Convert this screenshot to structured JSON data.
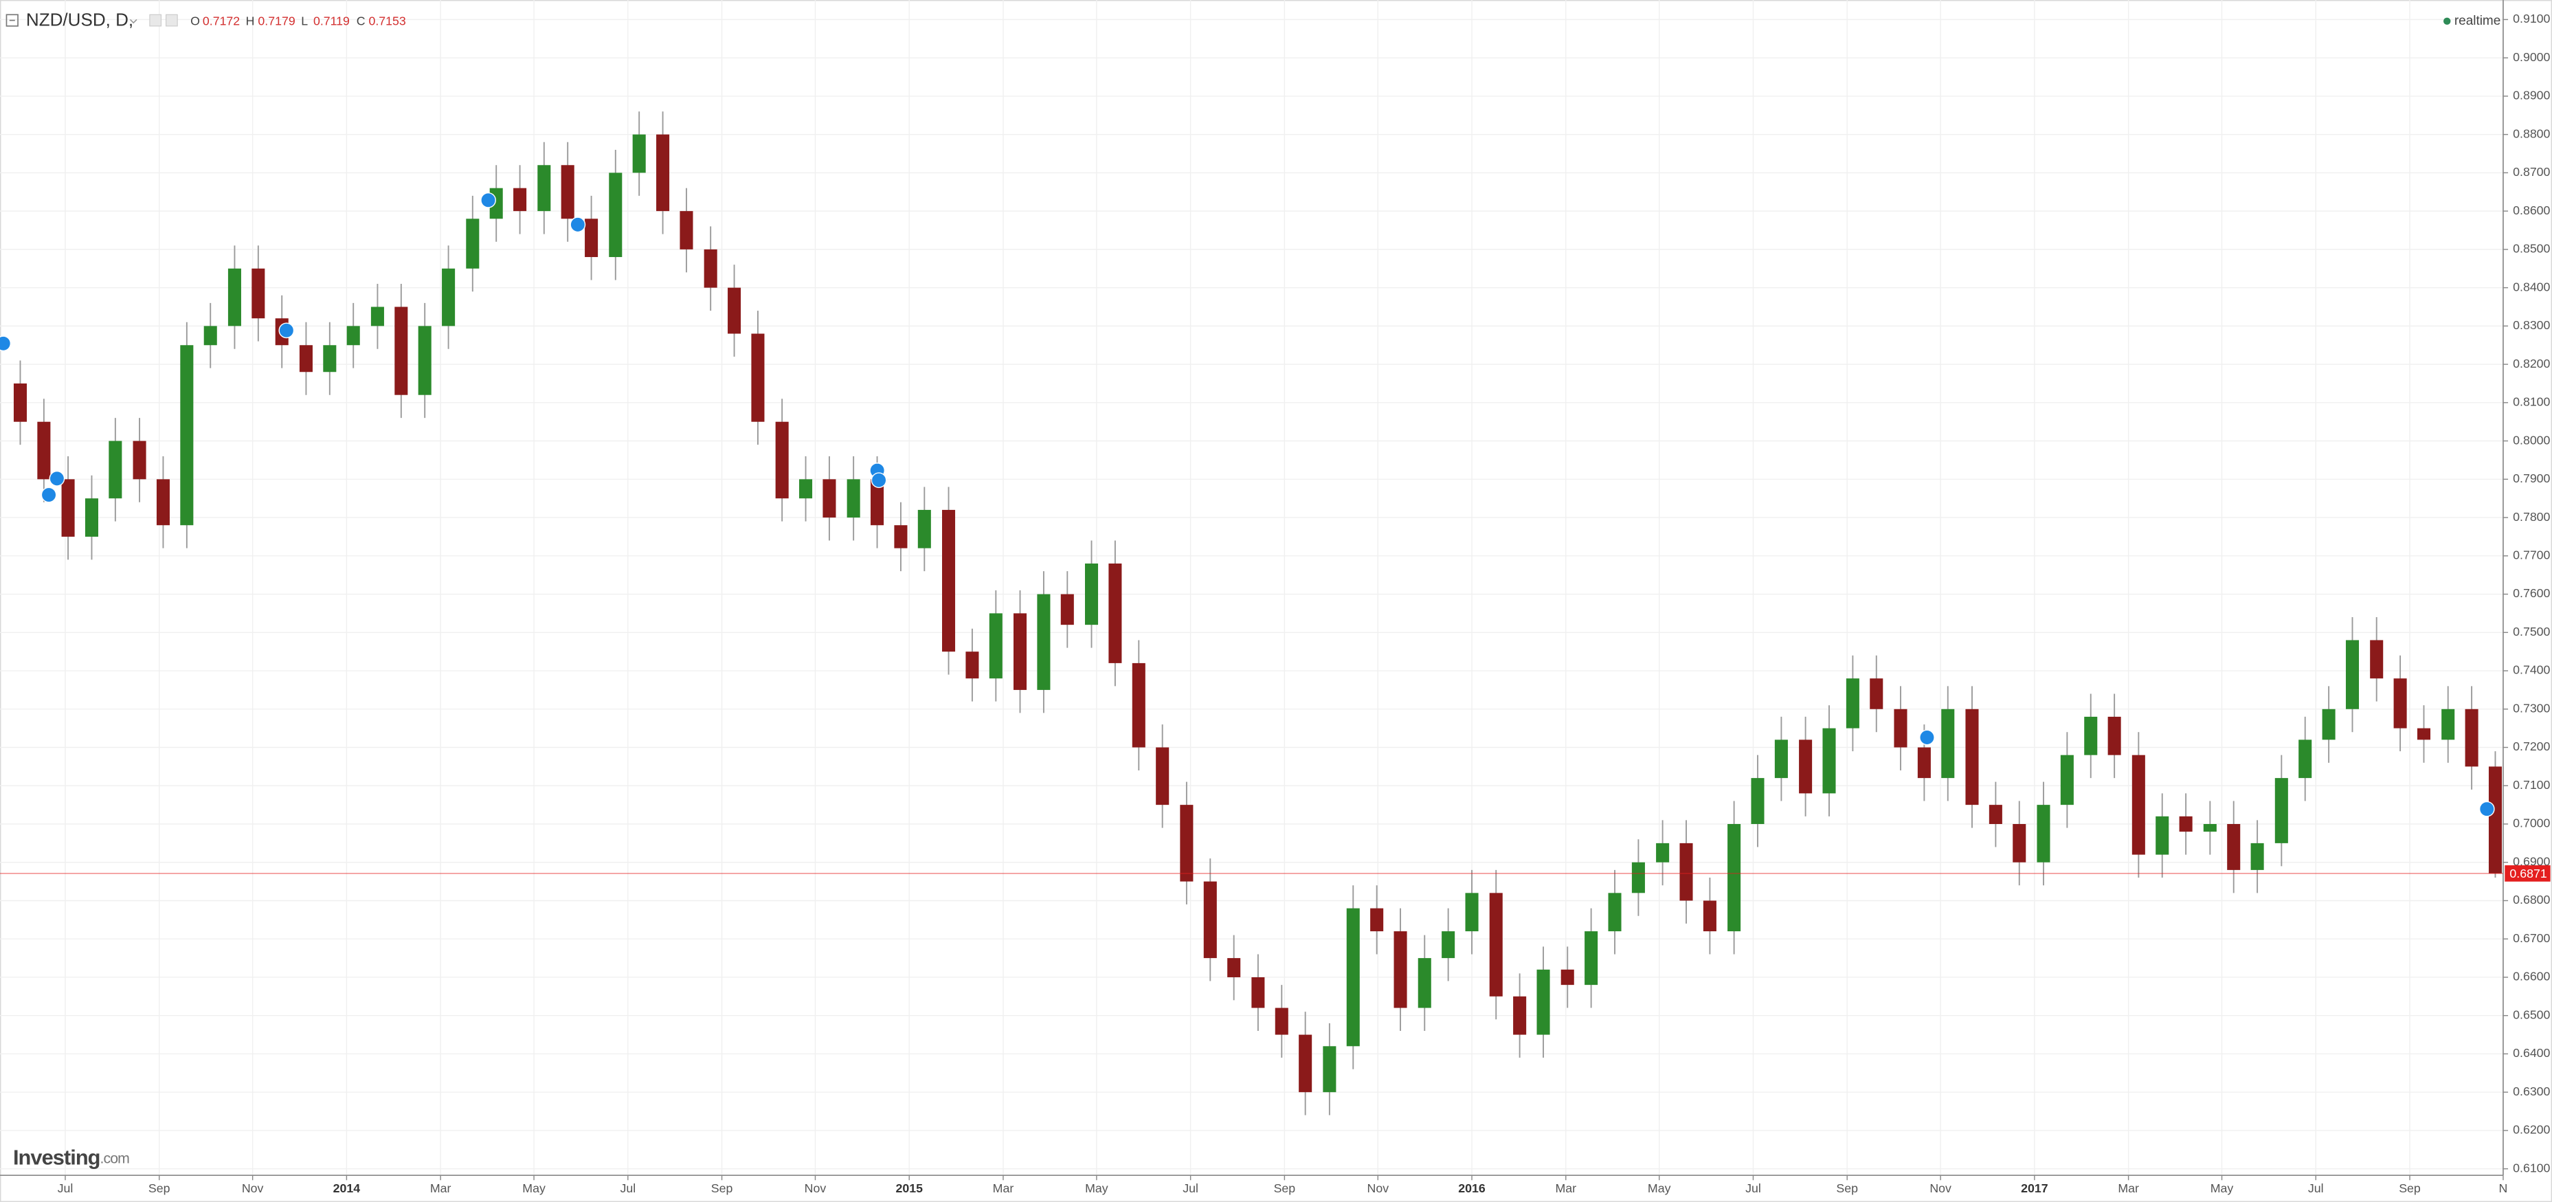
{
  "chart_data": {
    "type": "candlestick",
    "symbol": "NZD/USD, D,",
    "quote": [
      {
        "label": "O",
        "value": 0.7172
      },
      {
        "label": "H",
        "value": 0.7179
      },
      {
        "label": "L",
        "value": 0.7119
      },
      {
        "label": "C",
        "value": 0.7153
      }
    ],
    "status": "realtime",
    "brand": "Investing",
    "brand_suffix": ".com",
    "last_price": 0.6871,
    "last_price_color": "#e41e1e",
    "up_color": "#2b8a2b",
    "down_color": "#8b1a1a",
    "wick_color": "#9a9a9a",
    "grid": true,
    "xlim": [
      2013.384,
      2017.833
    ],
    "ylim": [
      0.6083,
      0.9151
    ],
    "xticks": [
      {
        "value": 2013.5,
        "label": "Jul"
      },
      {
        "value": 2013.667,
        "label": "Sep"
      },
      {
        "value": 2013.833,
        "label": "Nov"
      },
      2014,
      {
        "value": 2014.167,
        "label": "Mar"
      },
      {
        "value": 2014.333,
        "label": "May"
      },
      {
        "value": 2014.5,
        "label": "Jul"
      },
      {
        "value": 2014.667,
        "label": "Sep"
      },
      {
        "value": 2014.833,
        "label": "Nov"
      },
      2015,
      {
        "value": 2015.167,
        "label": "Mar"
      },
      {
        "value": 2015.333,
        "label": "May"
      },
      {
        "value": 2015.5,
        "label": "Jul"
      },
      {
        "value": 2015.667,
        "label": "Sep"
      },
      {
        "value": 2015.833,
        "label": "Nov"
      },
      2016,
      {
        "value": 2016.167,
        "label": "Mar"
      },
      {
        "value": 2016.333,
        "label": "May"
      },
      {
        "value": 2016.5,
        "label": "Jul"
      },
      {
        "value": 2016.667,
        "label": "Sep"
      },
      {
        "value": 2016.833,
        "label": "Nov"
      },
      2017,
      {
        "value": 2017.167,
        "label": "Mar"
      },
      {
        "value": 2017.333,
        "label": "May"
      },
      {
        "value": 2017.5,
        "label": "Jul"
      },
      {
        "value": 2017.667,
        "label": "Sep"
      },
      {
        "value": 2017.833,
        "label": "N"
      }
    ],
    "yticks": [
      {
        "value": 0.61,
        "label": "0.6100"
      },
      {
        "value": 0.62,
        "label": "0.6200"
      },
      {
        "value": 0.63,
        "label": "0.6300"
      },
      {
        "value": 0.64,
        "label": "0.6400"
      },
      {
        "value": 0.65,
        "label": "0.6500"
      },
      {
        "value": 0.66,
        "label": "0.6600"
      },
      {
        "value": 0.67,
        "label": "0.6700"
      },
      {
        "value": 0.68,
        "label": "0.6800"
      },
      {
        "value": 0.69,
        "label": "0.6900"
      },
      {
        "value": 0.7,
        "label": "0.7000"
      },
      {
        "value": 0.71,
        "label": "0.7100"
      },
      {
        "value": 0.72,
        "label": "0.7200"
      },
      {
        "value": 0.73,
        "label": "0.7300"
      },
      {
        "value": 0.74,
        "label": "0.7400"
      },
      {
        "value": 0.75,
        "label": "0.7500"
      },
      {
        "value": 0.76,
        "label": "0.7600"
      },
      {
        "value": 0.77,
        "label": "0.7700"
      },
      {
        "value": 0.78,
        "label": "0.7800"
      },
      {
        "value": 0.79,
        "label": "0.7900"
      },
      {
        "value": 0.8,
        "label": "0.8000"
      },
      {
        "value": 0.81,
        "label": "0.8100"
      },
      {
        "value": 0.82,
        "label": "0.8200"
      },
      {
        "value": 0.83,
        "label": "0.8300"
      },
      {
        "value": 0.84,
        "label": "0.8400"
      },
      {
        "value": 0.85,
        "label": "0.8500"
      },
      {
        "value": 0.86,
        "label": "0.8600"
      },
      {
        "value": 0.87,
        "label": "0.8700"
      },
      {
        "value": 0.88,
        "label": "0.8800"
      },
      {
        "value": 0.89,
        "label": "0.8900"
      },
      {
        "value": 0.9,
        "label": "0.9000"
      },
      {
        "value": 0.91,
        "label": "0.9100"
      }
    ],
    "x": [
      2013.42,
      2013.462,
      2013.505,
      2013.547,
      2013.589,
      2013.632,
      2013.674,
      2013.716,
      2013.758,
      2013.801,
      2013.843,
      2013.885,
      2013.928,
      2013.97,
      2014.012,
      2014.055,
      2014.097,
      2014.139,
      2014.181,
      2014.224,
      2014.266,
      2014.308,
      2014.351,
      2014.393,
      2014.435,
      2014.478,
      2014.52,
      2014.562,
      2014.604,
      2014.647,
      2014.689,
      2014.731,
      2014.774,
      2014.816,
      2014.858,
      2014.901,
      2014.943,
      2014.985,
      2015.027,
      2015.07,
      2015.112,
      2015.154,
      2015.197,
      2015.239,
      2015.281,
      2015.324,
      2015.366,
      2015.408,
      2015.45,
      2015.493,
      2015.535,
      2015.577,
      2015.62,
      2015.662,
      2015.704,
      2015.747,
      2015.789,
      2015.831,
      2015.873,
      2015.916,
      2015.958,
      2016.0,
      2016.043,
      2016.085,
      2016.127,
      2016.17,
      2016.212,
      2016.254,
      2016.296,
      2016.339,
      2016.381,
      2016.423,
      2016.466,
      2016.508,
      2016.55,
      2016.593,
      2016.635,
      2016.677,
      2016.719,
      2016.762,
      2016.804,
      2016.846,
      2016.889,
      2016.931,
      2016.973,
      2017.016,
      2017.058,
      2017.1,
      2017.142,
      2017.185,
      2017.227,
      2017.269,
      2017.312,
      2017.354,
      2017.396,
      2017.439,
      2017.481,
      2017.523,
      2017.565,
      2017.608,
      2017.65,
      2017.692,
      2017.735,
      2017.777,
      2017.819
    ],
    "open": [
      0.815,
      0.805,
      0.79,
      0.775,
      0.785,
      0.8,
      0.79,
      0.778,
      0.825,
      0.83,
      0.845,
      0.832,
      0.825,
      0.818,
      0.825,
      0.83,
      0.835,
      0.812,
      0.83,
      0.845,
      0.858,
      0.866,
      0.86,
      0.872,
      0.858,
      0.848,
      0.87,
      0.88,
      0.86,
      0.85,
      0.84,
      0.828,
      0.805,
      0.785,
      0.79,
      0.78,
      0.79,
      0.778,
      0.772,
      0.782,
      0.745,
      0.738,
      0.755,
      0.735,
      0.76,
      0.752,
      0.768,
      0.742,
      0.72,
      0.705,
      0.685,
      0.665,
      0.66,
      0.652,
      0.645,
      0.63,
      0.642,
      0.678,
      0.672,
      0.652,
      0.665,
      0.672,
      0.682,
      0.655,
      0.645,
      0.662,
      0.658,
      0.672,
      0.682,
      0.69,
      0.695,
      0.68,
      0.672,
      0.7,
      0.712,
      0.722,
      0.708,
      0.725,
      0.738,
      0.73,
      0.72,
      0.712,
      0.73,
      0.705,
      0.7,
      0.69,
      0.705,
      0.718,
      0.728,
      0.718,
      0.692,
      0.702,
      0.698,
      0.7,
      0.688,
      0.695,
      0.712,
      0.722,
      0.73,
      0.748,
      0.738,
      0.725,
      0.722,
      0.73,
      0.715
    ],
    "high": [
      0.821,
      0.811,
      0.796,
      0.791,
      0.806,
      0.806,
      0.796,
      0.831,
      0.836,
      0.851,
      0.851,
      0.838,
      0.831,
      0.831,
      0.836,
      0.841,
      0.841,
      0.836,
      0.851,
      0.864,
      0.872,
      0.872,
      0.878,
      0.878,
      0.864,
      0.876,
      0.886,
      0.886,
      0.866,
      0.856,
      0.846,
      0.834,
      0.811,
      0.796,
      0.796,
      0.796,
      0.796,
      0.784,
      0.788,
      0.788,
      0.751,
      0.761,
      0.761,
      0.766,
      0.766,
      0.774,
      0.774,
      0.748,
      0.726,
      0.711,
      0.691,
      0.671,
      0.666,
      0.658,
      0.651,
      0.648,
      0.684,
      0.684,
      0.678,
      0.671,
      0.678,
      0.688,
      0.688,
      0.661,
      0.668,
      0.668,
      0.678,
      0.688,
      0.696,
      0.701,
      0.701,
      0.686,
      0.706,
      0.718,
      0.728,
      0.728,
      0.731,
      0.744,
      0.744,
      0.736,
      0.726,
      0.736,
      0.736,
      0.711,
      0.706,
      0.711,
      0.724,
      0.734,
      0.734,
      0.724,
      0.708,
      0.708,
      0.706,
      0.706,
      0.701,
      0.718,
      0.728,
      0.736,
      0.754,
      0.754,
      0.744,
      0.731,
      0.736,
      0.736,
      0.719
    ],
    "low": [
      0.799,
      0.784,
      0.769,
      0.769,
      0.779,
      0.784,
      0.772,
      0.772,
      0.819,
      0.824,
      0.826,
      0.819,
      0.812,
      0.812,
      0.819,
      0.824,
      0.806,
      0.806,
      0.824,
      0.839,
      0.852,
      0.854,
      0.854,
      0.852,
      0.842,
      0.842,
      0.864,
      0.854,
      0.844,
      0.834,
      0.822,
      0.799,
      0.779,
      0.779,
      0.774,
      0.774,
      0.772,
      0.766,
      0.766,
      0.739,
      0.732,
      0.732,
      0.729,
      0.729,
      0.746,
      0.746,
      0.736,
      0.714,
      0.699,
      0.679,
      0.659,
      0.654,
      0.646,
      0.639,
      0.624,
      0.624,
      0.636,
      0.666,
      0.646,
      0.646,
      0.659,
      0.666,
      0.649,
      0.639,
      0.639,
      0.652,
      0.652,
      0.666,
      0.676,
      0.684,
      0.674,
      0.666,
      0.666,
      0.694,
      0.706,
      0.702,
      0.702,
      0.719,
      0.724,
      0.714,
      0.706,
      0.706,
      0.699,
      0.694,
      0.684,
      0.684,
      0.699,
      0.712,
      0.712,
      0.686,
      0.686,
      0.692,
      0.692,
      0.682,
      0.682,
      0.689,
      0.706,
      0.716,
      0.724,
      0.732,
      0.719,
      0.716,
      0.716,
      0.709,
      0.686
    ],
    "close": [
      0.805,
      0.79,
      0.775,
      0.785,
      0.8,
      0.79,
      0.778,
      0.825,
      0.83,
      0.845,
      0.832,
      0.825,
      0.818,
      0.825,
      0.83,
      0.835,
      0.812,
      0.83,
      0.845,
      0.858,
      0.866,
      0.86,
      0.872,
      0.858,
      0.848,
      0.87,
      0.88,
      0.86,
      0.85,
      0.84,
      0.828,
      0.805,
      0.785,
      0.79,
      0.78,
      0.79,
      0.778,
      0.772,
      0.782,
      0.745,
      0.738,
      0.755,
      0.735,
      0.76,
      0.752,
      0.768,
      0.742,
      0.72,
      0.705,
      0.685,
      0.665,
      0.66,
      0.652,
      0.645,
      0.63,
      0.642,
      0.678,
      0.672,
      0.652,
      0.665,
      0.672,
      0.682,
      0.655,
      0.645,
      0.662,
      0.658,
      0.672,
      0.682,
      0.69,
      0.695,
      0.68,
      0.672,
      0.7,
      0.712,
      0.722,
      0.708,
      0.725,
      0.738,
      0.73,
      0.72,
      0.712,
      0.73,
      0.705,
      0.7,
      0.69,
      0.705,
      0.718,
      0.728,
      0.718,
      0.692,
      0.702,
      0.698,
      0.7,
      0.688,
      0.695,
      0.712,
      0.722,
      0.73,
      0.748,
      0.738,
      0.725,
      0.722,
      0.73,
      0.715,
      0.6871
    ]
  }
}
